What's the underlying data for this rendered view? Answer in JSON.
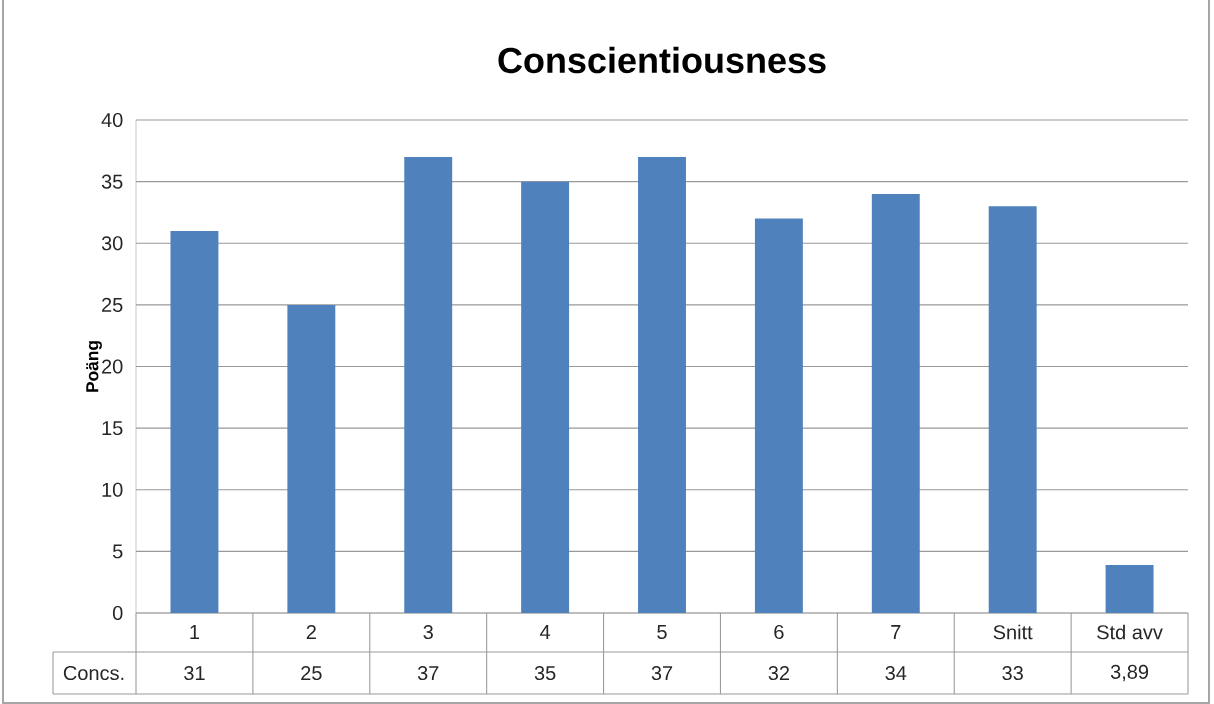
{
  "chart_data": {
    "type": "bar",
    "title": "Conscientiousness",
    "ylabel": "Poäng",
    "categories": [
      "1",
      "2",
      "3",
      "4",
      "5",
      "6",
      "7",
      "Snitt",
      "Std avv"
    ],
    "series": [
      {
        "name": "Concs.",
        "color": "#4f81bd",
        "values": [
          31,
          25,
          37,
          35,
          37,
          32,
          34,
          33,
          3.89
        ],
        "value_labels": [
          "31",
          "25",
          "37",
          "35",
          "37",
          "32",
          "34",
          "33",
          "3,89"
        ]
      }
    ],
    "ylim": [
      0,
      40
    ],
    "yticks": [
      0,
      5,
      10,
      15,
      20,
      25,
      30,
      35,
      40
    ],
    "grid": "y"
  }
}
